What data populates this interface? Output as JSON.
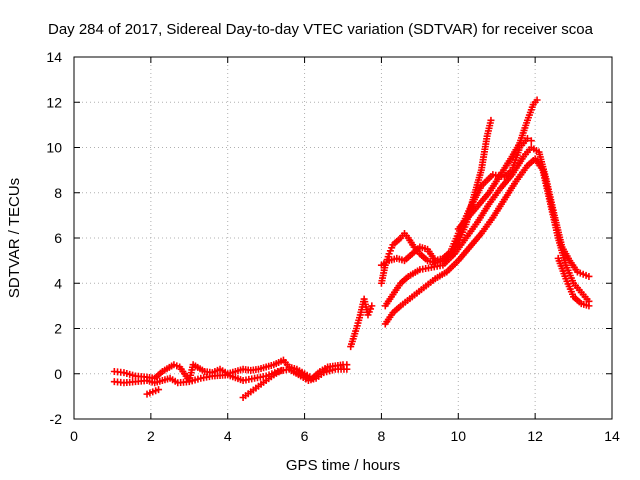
{
  "chart_data": {
    "type": "scatter",
    "title": "Day 284 of 2017, Sidereal Day-to-day VTEC variation (SDTVAR) for receiver scoa",
    "xlabel": "GPS time / hours",
    "ylabel": "SDTVAR / TECUs",
    "xlim": [
      0,
      14
    ],
    "ylim": [
      -2,
      14
    ],
    "x_ticks": [
      "0",
      "2",
      "4",
      "6",
      "8",
      "10",
      "12",
      "14"
    ],
    "y_ticks": [
      "-2",
      "0",
      "2",
      "4",
      "6",
      "8",
      "10",
      "12",
      "14"
    ],
    "grid": true,
    "legend": "none",
    "marker": "plus",
    "series_color": "#ff0000",
    "series": [
      {
        "points": [
          [
            1.05,
            0.1
          ],
          [
            1.3,
            0.05
          ],
          [
            1.6,
            -0.1
          ],
          [
            1.9,
            -0.15
          ],
          [
            2.1,
            -0.2
          ],
          [
            2.3,
            0.1
          ],
          [
            2.6,
            0.4
          ],
          [
            2.75,
            0.3
          ],
          [
            3.0,
            -0.3
          ],
          [
            3.1,
            0.4
          ],
          [
            3.4,
            0.1
          ],
          [
            3.6,
            0.05
          ],
          [
            3.8,
            0.2
          ],
          [
            4.0,
            0.0
          ],
          [
            4.2,
            0.1
          ],
          [
            4.4,
            0.2
          ],
          [
            4.6,
            0.15
          ],
          [
            4.8,
            0.2
          ],
          [
            5.0,
            0.3
          ],
          [
            5.2,
            0.4
          ],
          [
            5.45,
            0.6
          ],
          [
            5.6,
            0.3
          ],
          [
            5.8,
            0.2
          ],
          [
            6.0,
            0.0
          ],
          [
            6.2,
            -0.2
          ],
          [
            6.4,
            0.1
          ],
          [
            6.6,
            0.3
          ],
          [
            6.8,
            0.35
          ],
          [
            7.0,
            0.4
          ],
          [
            7.1,
            0.4
          ]
        ]
      },
      {
        "points": [
          [
            1.05,
            -0.35
          ],
          [
            1.3,
            -0.4
          ],
          [
            1.6,
            -0.35
          ],
          [
            1.9,
            -0.3
          ],
          [
            2.1,
            -0.4
          ],
          [
            2.5,
            -0.2
          ],
          [
            2.7,
            -0.4
          ],
          [
            3.0,
            -0.35
          ],
          [
            3.3,
            -0.2
          ],
          [
            3.6,
            -0.1
          ],
          [
            4.0,
            -0.05
          ],
          [
            4.4,
            -0.3
          ],
          [
            4.7,
            -0.2
          ],
          [
            5.0,
            -0.1
          ],
          [
            5.3,
            0.1
          ],
          [
            5.6,
            0.2
          ],
          [
            5.9,
            -0.1
          ],
          [
            6.1,
            -0.3
          ],
          [
            6.3,
            -0.2
          ],
          [
            6.5,
            0.05
          ],
          [
            6.8,
            0.2
          ],
          [
            7.1,
            0.2
          ]
        ]
      },
      {
        "points": [
          [
            1.9,
            -0.9
          ],
          [
            2.05,
            -0.8
          ],
          [
            2.2,
            -0.7
          ]
        ]
      },
      {
        "points": [
          [
            4.4,
            -1.05
          ],
          [
            4.6,
            -0.8
          ],
          [
            4.8,
            -0.55
          ],
          [
            5.0,
            -0.3
          ],
          [
            5.2,
            -0.05
          ],
          [
            5.4,
            0.15
          ]
        ]
      },
      {
        "points": [
          [
            7.2,
            1.2
          ],
          [
            7.35,
            2.0
          ],
          [
            7.45,
            2.6
          ],
          [
            7.55,
            3.3
          ],
          [
            7.65,
            2.6
          ],
          [
            7.75,
            3.0
          ]
        ]
      },
      {
        "points": [
          [
            8.0,
            4.0
          ],
          [
            8.1,
            4.8
          ],
          [
            8.2,
            5.3
          ],
          [
            8.3,
            5.7
          ],
          [
            8.5,
            6.0
          ],
          [
            8.6,
            6.2
          ],
          [
            8.7,
            6.0
          ],
          [
            8.85,
            5.6
          ],
          [
            9.0,
            5.3
          ],
          [
            9.2,
            5.0
          ],
          [
            9.4,
            4.9
          ],
          [
            9.6,
            5.0
          ],
          [
            9.8,
            5.2
          ],
          [
            10.0,
            5.8
          ],
          [
            10.2,
            6.6
          ],
          [
            10.4,
            7.8
          ],
          [
            10.6,
            9.0
          ],
          [
            10.75,
            10.5
          ],
          [
            10.85,
            11.2
          ]
        ]
      },
      {
        "points": [
          [
            8.0,
            4.8
          ],
          [
            8.2,
            5.0
          ],
          [
            8.4,
            5.1
          ],
          [
            8.6,
            5.0
          ],
          [
            8.8,
            5.3
          ],
          [
            9.0,
            5.6
          ],
          [
            9.2,
            5.5
          ],
          [
            9.4,
            5.0
          ],
          [
            9.6,
            5.1
          ],
          [
            9.8,
            5.4
          ],
          [
            10.0,
            6.2
          ],
          [
            10.3,
            7.3
          ],
          [
            10.6,
            8.3
          ],
          [
            10.9,
            8.8
          ],
          [
            11.2,
            8.7
          ],
          [
            11.4,
            9.0
          ],
          [
            11.6,
            10.0
          ],
          [
            11.8,
            10.4
          ],
          [
            11.9,
            10.3
          ]
        ]
      },
      {
        "points": [
          [
            8.1,
            3.0
          ],
          [
            8.3,
            3.5
          ],
          [
            8.5,
            4.0
          ],
          [
            8.7,
            4.3
          ],
          [
            9.0,
            4.6
          ],
          [
            9.3,
            4.7
          ],
          [
            9.6,
            4.8
          ],
          [
            9.9,
            5.3
          ],
          [
            10.2,
            6.0
          ],
          [
            10.5,
            6.7
          ],
          [
            10.8,
            7.5
          ],
          [
            11.1,
            8.2
          ],
          [
            11.4,
            8.8
          ],
          [
            11.7,
            9.6
          ],
          [
            11.9,
            10.0
          ],
          [
            12.1,
            9.8
          ],
          [
            12.3,
            8.5
          ],
          [
            12.5,
            7.0
          ],
          [
            12.7,
            5.6
          ],
          [
            12.9,
            5.0
          ],
          [
            13.1,
            4.5
          ],
          [
            13.4,
            4.3
          ]
        ]
      },
      {
        "points": [
          [
            8.1,
            2.2
          ],
          [
            8.3,
            2.7
          ],
          [
            8.5,
            3.0
          ],
          [
            8.8,
            3.4
          ],
          [
            9.1,
            3.8
          ],
          [
            9.4,
            4.2
          ],
          [
            9.7,
            4.5
          ],
          [
            10.0,
            5.0
          ],
          [
            10.3,
            5.6
          ],
          [
            10.6,
            6.2
          ],
          [
            10.9,
            6.9
          ],
          [
            11.2,
            7.7
          ],
          [
            11.5,
            8.5
          ],
          [
            11.8,
            9.2
          ],
          [
            12.0,
            9.5
          ],
          [
            12.2,
            9.0
          ],
          [
            12.4,
            7.5
          ],
          [
            12.6,
            6.0
          ],
          [
            12.8,
            4.8
          ],
          [
            13.0,
            4.0
          ],
          [
            13.2,
            3.6
          ],
          [
            13.4,
            3.2
          ]
        ]
      },
      {
        "points": [
          [
            10.0,
            6.4
          ],
          [
            10.4,
            7.2
          ],
          [
            10.8,
            8.0
          ],
          [
            11.1,
            8.8
          ],
          [
            11.4,
            9.6
          ],
          [
            11.6,
            10.2
          ],
          [
            11.8,
            11.2
          ],
          [
            11.95,
            11.9
          ],
          [
            12.05,
            12.1
          ]
        ]
      },
      {
        "points": [
          [
            12.6,
            5.1
          ],
          [
            12.8,
            4.2
          ],
          [
            13.0,
            3.4
          ],
          [
            13.2,
            3.1
          ],
          [
            13.4,
            3.0
          ]
        ]
      }
    ]
  }
}
